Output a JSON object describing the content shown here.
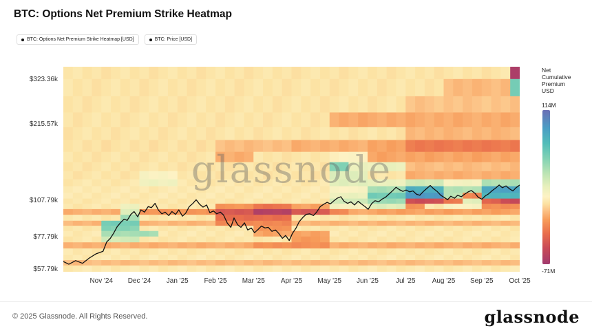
{
  "header": {
    "title": "BTC: Options Net Premium Strike Heatmap"
  },
  "legend": [
    {
      "label": "BTC: Options Net Premium Strike Heatmap [USD]"
    },
    {
      "label": "BTC: Price [USD]"
    }
  ],
  "watermark": "glassnode",
  "colorbar": {
    "title_lines": [
      "Net",
      "Cumulative",
      "Premium",
      "USD"
    ],
    "max_label": "114M",
    "min_label": "-71M"
  },
  "footer": {
    "copyright": "© 2025 Glassnode. All Rights Reserved.",
    "logo": "glassnode"
  },
  "chart_data": {
    "type": "heatmap",
    "title": "BTC: Options Net Premium Strike Heatmap",
    "value_unit": "USD millions, net cumulative options premium per strike",
    "value_range": {
      "min": -71,
      "max": 114
    },
    "x_axis": {
      "ticks": [
        "Nov '24",
        "Dec '24",
        "Jan '25",
        "Feb '25",
        "Mar '25",
        "Apr '25",
        "May '25",
        "Jun '25",
        "Jul '25",
        "Aug '25",
        "Sep '25",
        "Oct '25"
      ]
    },
    "y_axis": {
      "scale": "log",
      "unit": "USD thousands (strike price)",
      "ticks": [
        {
          "label": "$323.36k",
          "value": 323.36
        },
        {
          "label": "$215.57k",
          "value": 215.57
        },
        {
          "label": "$107.79k",
          "value": 107.79
        },
        {
          "label": "$77.79k",
          "value": 77.79
        },
        {
          "label": "$57.79k",
          "value": 57.79
        }
      ]
    },
    "colormap_stops": [
      [
        -71,
        "#a23a6e"
      ],
      [
        -52,
        "#c84a57"
      ],
      [
        -34,
        "#e96e4c"
      ],
      [
        -18,
        "#f79b59"
      ],
      [
        -6,
        "#fcc488"
      ],
      [
        2,
        "#fce3a4"
      ],
      [
        10,
        "#fdf2c4"
      ],
      [
        22,
        "#e8f0bc"
      ],
      [
        38,
        "#bce4b4"
      ],
      [
        56,
        "#82d2b4"
      ],
      [
        74,
        "#52bdb9"
      ],
      [
        92,
        "#4b9ec4"
      ],
      [
        114,
        "#6a6fb5"
      ]
    ],
    "heatmap": {
      "col_count": 48,
      "row_edges_k": [
        56.5,
        60,
        63,
        66,
        70,
        74,
        78,
        82,
        86,
        90,
        95,
        100,
        105,
        110,
        116,
        123,
        131,
        141,
        153,
        168,
        187,
        210,
        240,
        278,
        325,
        362
      ],
      "rows": [
        {
          "base": 5,
          "segments": []
        },
        {
          "base": -8,
          "segments": []
        },
        {
          "base": 5,
          "segments": []
        },
        {
          "base": 4,
          "segments": []
        },
        {
          "base": -12,
          "segments": [
            [
              20,
              27,
              -22
            ]
          ]
        },
        {
          "base": 4,
          "segments": [
            [
              4,
              7,
              30
            ],
            [
              24,
              27,
              -18
            ]
          ]
        },
        {
          "base": 5,
          "segments": [
            [
              4,
              9,
              45
            ],
            [
              20,
              27,
              -15
            ]
          ]
        },
        {
          "base": 4,
          "segments": [
            [
              4,
              7,
              55
            ],
            [
              20,
              23,
              -20
            ]
          ]
        },
        {
          "base": -10,
          "segments": [
            [
              4,
              7,
              60
            ],
            [
              16,
              23,
              -25
            ]
          ]
        },
        {
          "base": 4,
          "segments": [
            [
              6,
              7,
              45
            ],
            [
              16,
              23,
              -35
            ]
          ]
        },
        {
          "base": -12,
          "segments": [
            [
              6,
              7,
              25
            ],
            [
              8,
              15,
              -20
            ],
            [
              16,
              19,
              -45
            ],
            [
              20,
              23,
              -62
            ],
            [
              24,
              27,
              -45
            ],
            [
              28,
              29,
              -25
            ],
            [
              32,
              47,
              -16
            ]
          ]
        },
        {
          "base": 4,
          "segments": [
            [
              6,
              7,
              20
            ],
            [
              16,
              19,
              -20
            ],
            [
              20,
              23,
              -32
            ],
            [
              24,
              27,
              -15
            ],
            [
              28,
              31,
              15
            ],
            [
              32,
              35,
              25
            ],
            [
              36,
              37,
              -20
            ],
            [
              40,
              43,
              12
            ],
            [
              44,
              47,
              -22
            ]
          ]
        },
        {
          "base": 4,
          "segments": [
            [
              28,
              31,
              30
            ],
            [
              32,
              35,
              48
            ],
            [
              36,
              39,
              -50
            ],
            [
              40,
              41,
              -30
            ],
            [
              42,
              43,
              25
            ],
            [
              44,
              45,
              -40
            ],
            [
              46,
              47,
              -52
            ]
          ]
        },
        {
          "base": 5,
          "segments": [
            [
              28,
              31,
              20
            ],
            [
              32,
              35,
              62
            ],
            [
              36,
              39,
              95
            ],
            [
              40,
              41,
              38
            ],
            [
              42,
              43,
              -25
            ],
            [
              44,
              47,
              78
            ]
          ]
        },
        {
          "base": 5,
          "segments": [
            [
              28,
              31,
              12
            ],
            [
              32,
              35,
              45
            ],
            [
              36,
              39,
              82
            ],
            [
              40,
              43,
              40
            ],
            [
              44,
              47,
              88
            ]
          ]
        },
        {
          "base": 4,
          "segments": [
            [
              8,
              11,
              18
            ],
            [
              28,
              31,
              25
            ],
            [
              32,
              35,
              20
            ],
            [
              36,
              39,
              30
            ],
            [
              40,
              43,
              15
            ],
            [
              44,
              47,
              42
            ]
          ]
        },
        {
          "base": 3,
          "segments": [
            [
              8,
              11,
              12
            ],
            [
              28,
              31,
              25
            ],
            [
              36,
              47,
              -12
            ]
          ]
        },
        {
          "base": 3,
          "segments": [
            [
              28,
              29,
              55
            ],
            [
              30,
              35,
              20
            ],
            [
              36,
              47,
              -8
            ]
          ]
        },
        {
          "base": 3,
          "segments": [
            [
              16,
              19,
              -12
            ],
            [
              28,
              31,
              10
            ],
            [
              32,
              47,
              -15
            ]
          ]
        },
        {
          "base": 2,
          "segments": [
            [
              16,
              27,
              -8
            ],
            [
              24,
              31,
              -12
            ],
            [
              32,
              35,
              -15
            ],
            [
              36,
              47,
              -30
            ]
          ]
        },
        {
          "base": 3,
          "segments": [
            [
              36,
              47,
              -10
            ]
          ]
        },
        {
          "base": 3,
          "segments": [
            [
              28,
              47,
              -13
            ]
          ]
        },
        {
          "base": 3,
          "segments": [
            [
              36,
              47,
              -6
            ]
          ]
        },
        {
          "base": 3,
          "segments": [
            [
              40,
              46,
              -9
            ],
            [
              47,
              47,
              60
            ]
          ]
        },
        {
          "base": 3,
          "segments": [
            [
              47,
              47,
              -65
            ]
          ]
        }
      ]
    },
    "price_line": {
      "name": "BTC: Price [USD]",
      "color": "#111111",
      "unit": "USD thousands",
      "points": [
        [
          0.0,
          62
        ],
        [
          0.012,
          60.5
        ],
        [
          0.027,
          62.5
        ],
        [
          0.042,
          61
        ],
        [
          0.057,
          64
        ],
        [
          0.072,
          66.5
        ],
        [
          0.087,
          68
        ],
        [
          0.095,
          74
        ],
        [
          0.103,
          76.5
        ],
        [
          0.11,
          80
        ],
        [
          0.118,
          85
        ],
        [
          0.125,
          88
        ],
        [
          0.133,
          91
        ],
        [
          0.14,
          90
        ],
        [
          0.148,
          95
        ],
        [
          0.155,
          97.5
        ],
        [
          0.163,
          93
        ],
        [
          0.17,
          99
        ],
        [
          0.178,
          97
        ],
        [
          0.186,
          102
        ],
        [
          0.193,
          101
        ],
        [
          0.201,
          105
        ],
        [
          0.208,
          99
        ],
        [
          0.216,
          95.5
        ],
        [
          0.223,
          97
        ],
        [
          0.231,
          94
        ],
        [
          0.238,
          97.5
        ],
        [
          0.246,
          95
        ],
        [
          0.253,
          99
        ],
        [
          0.261,
          93.5
        ],
        [
          0.268,
          96
        ],
        [
          0.276,
          102
        ],
        [
          0.284,
          105
        ],
        [
          0.291,
          108.5
        ],
        [
          0.299,
          104
        ],
        [
          0.306,
          101.5
        ],
        [
          0.314,
          103.5
        ],
        [
          0.321,
          96.5
        ],
        [
          0.329,
          98
        ],
        [
          0.336,
          95.5
        ],
        [
          0.344,
          97
        ],
        [
          0.351,
          94.5
        ],
        [
          0.359,
          88
        ],
        [
          0.367,
          84.5
        ],
        [
          0.374,
          92
        ],
        [
          0.382,
          86.5
        ],
        [
          0.389,
          84.5
        ],
        [
          0.397,
          88
        ],
        [
          0.404,
          82.5
        ],
        [
          0.412,
          84
        ],
        [
          0.419,
          80.5
        ],
        [
          0.427,
          83
        ],
        [
          0.434,
          85.5
        ],
        [
          0.442,
          84
        ],
        [
          0.449,
          84.5
        ],
        [
          0.457,
          81.5
        ],
        [
          0.465,
          82.5
        ],
        [
          0.472,
          80
        ],
        [
          0.48,
          76.5
        ],
        [
          0.487,
          78.5
        ],
        [
          0.495,
          75
        ],
        [
          0.502,
          80
        ],
        [
          0.51,
          84
        ],
        [
          0.517,
          89
        ],
        [
          0.525,
          92.5
        ],
        [
          0.532,
          95
        ],
        [
          0.54,
          95.5
        ],
        [
          0.548,
          94
        ],
        [
          0.555,
          97
        ],
        [
          0.563,
          102
        ],
        [
          0.57,
          104
        ],
        [
          0.578,
          106
        ],
        [
          0.585,
          104.5
        ],
        [
          0.593,
          107.5
        ],
        [
          0.6,
          110
        ],
        [
          0.608,
          111.5
        ],
        [
          0.615,
          107
        ],
        [
          0.623,
          105
        ],
        [
          0.63,
          106.5
        ],
        [
          0.638,
          103.5
        ],
        [
          0.646,
          107
        ],
        [
          0.653,
          104.5
        ],
        [
          0.661,
          102
        ],
        [
          0.668,
          99.5
        ],
        [
          0.676,
          105
        ],
        [
          0.683,
          107.5
        ],
        [
          0.691,
          106.5
        ],
        [
          0.698,
          109
        ],
        [
          0.706,
          111
        ],
        [
          0.713,
          114
        ],
        [
          0.721,
          117.5
        ],
        [
          0.729,
          121.5
        ],
        [
          0.736,
          119
        ],
        [
          0.744,
          117
        ],
        [
          0.751,
          118.5
        ],
        [
          0.759,
          116.5
        ],
        [
          0.766,
          117.5
        ],
        [
          0.774,
          114
        ],
        [
          0.781,
          113
        ],
        [
          0.789,
          117
        ],
        [
          0.796,
          120
        ],
        [
          0.804,
          123.5
        ],
        [
          0.811,
          120
        ],
        [
          0.819,
          117
        ],
        [
          0.827,
          113
        ],
        [
          0.834,
          111
        ],
        [
          0.842,
          108.5
        ],
        [
          0.849,
          112
        ],
        [
          0.857,
          110
        ],
        [
          0.864,
          113
        ],
        [
          0.872,
          111.5
        ],
        [
          0.879,
          114
        ],
        [
          0.887,
          116.5
        ],
        [
          0.894,
          118
        ],
        [
          0.902,
          115
        ],
        [
          0.909,
          111
        ],
        [
          0.917,
          109
        ],
        [
          0.925,
          112.5
        ],
        [
          0.932,
          114.5
        ],
        [
          0.94,
          118
        ],
        [
          0.947,
          120.5
        ],
        [
          0.955,
          124
        ],
        [
          0.962,
          121
        ],
        [
          0.97,
          123
        ],
        [
          0.977,
          120
        ],
        [
          0.985,
          117.5
        ],
        [
          0.992,
          121
        ],
        [
          1.0,
          124
        ]
      ]
    }
  }
}
